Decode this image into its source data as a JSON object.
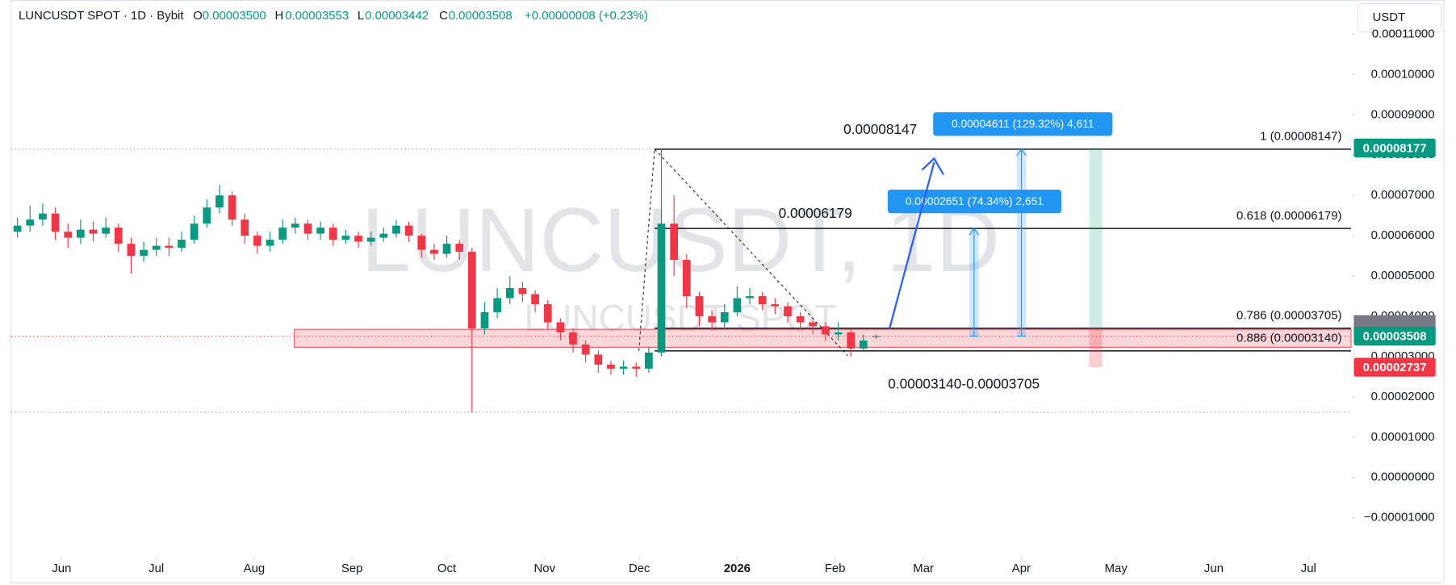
{
  "header": {
    "symbol": "LUNCUSDT SPOT · 1D · Bybit",
    "o_label": "O",
    "o": "0.00003500",
    "h_label": "H",
    "h": "0.00003553",
    "l_label": "L",
    "l": "0.00003442",
    "c_label": "C",
    "c": "0.00003508",
    "change": "+0.00000008 (+0.23%)",
    "currency": "USDT"
  },
  "chart_data": {
    "type": "candlestick",
    "watermark": "LUNCUSDT, 1D",
    "watermark_sub": "LUNCUSDT SPOT",
    "xlim": [
      -16,
      407
    ],
    "xticks": [
      {
        "value": 0,
        "label": "Jun"
      },
      {
        "value": 30,
        "label": "Jul"
      },
      {
        "value": 61,
        "label": "Aug"
      },
      {
        "value": 92,
        "label": "Sep"
      },
      {
        "value": 122,
        "label": "Oct"
      },
      {
        "value": 153,
        "label": "Nov"
      },
      {
        "value": 183,
        "label": "Dec"
      },
      {
        "value": 214,
        "label": "2026"
      },
      {
        "value": 245,
        "label": "Feb"
      },
      {
        "value": 273,
        "label": "Mar"
      },
      {
        "value": 304,
        "label": "Apr"
      },
      {
        "value": 334,
        "label": "May"
      },
      {
        "value": 365,
        "label": "Jun"
      },
      {
        "value": 395,
        "label": "Jul"
      }
    ],
    "ylim": [
      -1.967e-05,
      0.0001185
    ],
    "yticks": [
      {
        "value": 0.00011,
        "label": "0.00011000"
      },
      {
        "value": 0.0001,
        "label": "0.00010000"
      },
      {
        "value": 9e-05,
        "label": "0.00009000"
      },
      {
        "value": 8e-05,
        "label": "0.00008000"
      },
      {
        "value": 7e-05,
        "label": "0.00007000"
      },
      {
        "value": 6e-05,
        "label": "0.00006000"
      },
      {
        "value": 5e-05,
        "label": "0.00005000"
      },
      {
        "value": 4e-05,
        "label": "0.00004000"
      },
      {
        "value": 3e-05,
        "label": "0.00003000"
      },
      {
        "value": 2e-05,
        "label": "0.00002000"
      },
      {
        "value": 1e-05,
        "label": "0.00001000"
      },
      {
        "value": 0,
        "label": "0.00000000"
      },
      {
        "value": -1e-05,
        "label": "−0.00001000"
      }
    ],
    "up_color": "#089981",
    "down_color": "#f23645",
    "x": [
      -14,
      -10,
      -6,
      -2,
      2,
      6,
      10,
      14,
      18,
      22,
      26,
      30,
      34,
      38,
      42,
      46,
      50,
      54,
      58,
      62,
      66,
      70,
      74,
      78,
      82,
      86,
      90,
      94,
      98,
      102,
      106,
      110,
      114,
      118,
      122,
      126,
      130,
      134,
      138,
      142,
      146,
      150,
      154,
      158,
      162,
      166,
      170,
      174,
      178,
      182,
      186,
      190,
      194,
      198,
      202,
      206,
      210,
      214,
      218,
      222,
      226,
      230,
      234,
      238,
      242,
      246,
      250,
      254,
      258
    ],
    "open": [
      6.1e-05,
      6.25e-05,
      6.4e-05,
      6.55e-05,
      6.1e-05,
      5.95e-05,
      6.15e-05,
      6.05e-05,
      6.2e-05,
      5.8e-05,
      5.5e-05,
      5.65e-05,
      5.75e-05,
      5.7e-05,
      5.9e-05,
      6.3e-05,
      6.7e-05,
      7e-05,
      6.4e-05,
      6e-05,
      5.75e-05,
      5.9e-05,
      6.2e-05,
      6.3e-05,
      6.05e-05,
      6.2e-05,
      5.9e-05,
      6e-05,
      5.85e-05,
      5.95e-05,
      6.05e-05,
      6.25e-05,
      6e-05,
      5.65e-05,
      5.55e-05,
      5.8e-05,
      5.6e-05,
      3.7e-05,
      4.1e-05,
      4.45e-05,
      4.7e-05,
      4.55e-05,
      4.3e-05,
      3.85e-05,
      3.6e-05,
      3.3e-05,
      3.05e-05,
      2.8e-05,
      2.7e-05,
      2.75e-05,
      2.7e-05,
      3.1e-05,
      6.3e-05,
      5.4e-05,
      4.5e-05,
      4e-05,
      3.85e-05,
      4.1e-05,
      4.45e-05,
      4.5e-05,
      4.3e-05,
      4.25e-05,
      4e-05,
      3.85e-05,
      3.75e-05,
      3.55e-05,
      3.6e-05,
      3.2e-05,
      3.5e-05
    ],
    "high": [
      6.45e-05,
      6.75e-05,
      6.8e-05,
      6.7e-05,
      6.3e-05,
      6.4e-05,
      6.35e-05,
      6.45e-05,
      6.3e-05,
      5.95e-05,
      5.85e-05,
      5.95e-05,
      5.95e-05,
      6.1e-05,
      6.5e-05,
      6.9e-05,
      7.26e-05,
      7.1e-05,
      6.55e-05,
      6.1e-05,
      6.1e-05,
      6.4e-05,
      6.45e-05,
      6.4e-05,
      6.35e-05,
      6.3e-05,
      6.15e-05,
      6.1e-05,
      6.1e-05,
      6.2e-05,
      6.4e-05,
      6.35e-05,
      6.05e-05,
      5.8e-05,
      6e-05,
      5.9e-05,
      5.7e-05,
      4.35e-05,
      4.7e-05,
      5e-05,
      4.85e-05,
      4.65e-05,
      4.4e-05,
      3.95e-05,
      3.7e-05,
      3.4e-05,
      3.15e-05,
      2.9e-05,
      2.9e-05,
      2.85e-05,
      3.25e-05,
      8.15e-05,
      7e-05,
      5.55e-05,
      4.6e-05,
      4.15e-05,
      4.3e-05,
      4.75e-05,
      4.7e-05,
      4.6e-05,
      4.45e-05,
      4.35e-05,
      4.1e-05,
      3.95e-05,
      3.85e-05,
      3.85e-05,
      3.7e-05,
      3.55e-05,
      3.553e-05
    ],
    "low": [
      5.95e-05,
      6.1e-05,
      6.25e-05,
      5.9e-05,
      5.7e-05,
      5.8e-05,
      5.85e-05,
      5.95e-05,
      5.6e-05,
      5.06e-05,
      5.35e-05,
      5.5e-05,
      5.5e-05,
      5.6e-05,
      5.8e-05,
      6.2e-05,
      6.55e-05,
      6.25e-05,
      5.8e-05,
      5.55e-05,
      5.6e-05,
      5.8e-05,
      6.05e-05,
      5.9e-05,
      5.9e-05,
      5.75e-05,
      5.8e-05,
      5.7e-05,
      5.75e-05,
      5.85e-05,
      5.95e-05,
      5.85e-05,
      5.45e-05,
      5.4e-05,
      5.45e-05,
      5.4e-05,
      1.62e-05,
      3.55e-05,
      3.95e-05,
      4.3e-05,
      4.35e-05,
      4.1e-05,
      3.65e-05,
      3.4e-05,
      3.1e-05,
      2.85e-05,
      2.6e-05,
      2.55e-05,
      2.55e-05,
      2.5e-05,
      2.6e-05,
      3e-05,
      5e-05,
      4.2e-05,
      3.75e-05,
      3.65e-05,
      3.7e-05,
      4e-05,
      4.3e-05,
      4.15e-05,
      4.05e-05,
      3.85e-05,
      3.7e-05,
      3.55e-05,
      3.4e-05,
      3.4e-05,
      3e-05,
      3.15e-05,
      3.442e-05
    ],
    "close": [
      6.25e-05,
      6.4e-05,
      6.55e-05,
      6.1e-05,
      5.95e-05,
      6.15e-05,
      6.05e-05,
      6.2e-05,
      5.8e-05,
      5.5e-05,
      5.65e-05,
      5.75e-05,
      5.7e-05,
      5.9e-05,
      6.3e-05,
      6.7e-05,
      7e-05,
      6.4e-05,
      6e-05,
      5.75e-05,
      5.9e-05,
      6.2e-05,
      6.3e-05,
      6.05e-05,
      6.2e-05,
      5.9e-05,
      6e-05,
      5.85e-05,
      5.95e-05,
      6.05e-05,
      6.25e-05,
      6e-05,
      5.65e-05,
      5.55e-05,
      5.8e-05,
      5.6e-05,
      3.7e-05,
      4.1e-05,
      4.45e-05,
      4.7e-05,
      4.55e-05,
      4.3e-05,
      3.85e-05,
      3.6e-05,
      3.3e-05,
      3.05e-05,
      2.8e-05,
      2.7e-05,
      2.75e-05,
      2.7e-05,
      3.1e-05,
      6.3e-05,
      5.4e-05,
      4.5e-05,
      4e-05,
      3.85e-05,
      4.1e-05,
      4.45e-05,
      4.5e-05,
      4.3e-05,
      4.25e-05,
      4e-05,
      3.85e-05,
      3.75e-05,
      3.55e-05,
      3.6e-05,
      3.2e-05,
      3.4e-05,
      3.508e-05
    ],
    "fib_levels": [
      {
        "label": "1 (0.00008147)",
        "value": 8.147e-05
      },
      {
        "label": "0.618 (0.00006179)",
        "value": 6.179e-05
      },
      {
        "label": "0.786 (0.00003705)",
        "value": 3.705e-05
      },
      {
        "label": "0.886 (0.00003140)",
        "value": 3.14e-05
      }
    ],
    "annotations": [
      "0.00008147",
      "0.00006179",
      "0.00003140-0.00003705"
    ],
    "callouts": [
      "0.00004611 (129.32%) 4,611",
      "0.00002651 (74.34%) 2,651"
    ],
    "price_tags": [
      {
        "label": "0.00008177",
        "value": 8.177e-05,
        "color": "#089981"
      },
      {
        "label": "0.00003508",
        "value": 3.508e-05,
        "color": "#089981"
      },
      {
        "label": "0.00002737",
        "value": 2.737e-05,
        "color": "#f23645"
      }
    ]
  }
}
